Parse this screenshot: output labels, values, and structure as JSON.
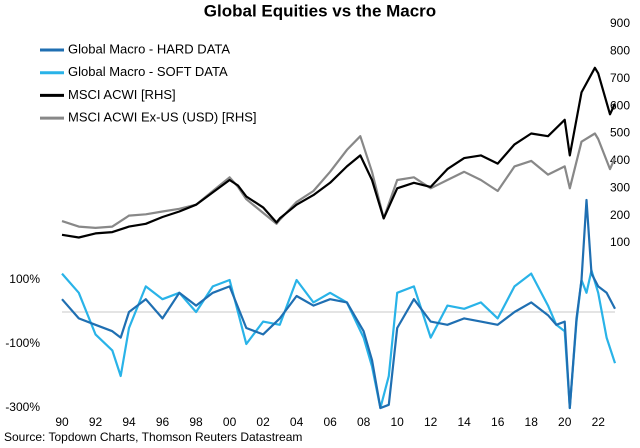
{
  "chart_data": [
    {
      "type": "line",
      "title": "Global Equities vs the Macro",
      "axis_side": "left",
      "x": [
        1990,
        1991,
        1992,
        1993,
        1993.5,
        1994,
        1995,
        1996,
        1997,
        1998,
        1999,
        2000,
        2001,
        2002,
        2003,
        2004,
        2005,
        2006,
        2007,
        2008,
        2008.5,
        2009,
        2009.5,
        2010,
        2011,
        2012,
        2013,
        2014,
        2015,
        2016,
        2017,
        2018,
        2019,
        2019.5,
        2020,
        2020.3,
        2020.7,
        2021,
        2021.3,
        2021.6,
        2022,
        2022.5,
        2023
      ],
      "xlim": [
        1990,
        2023
      ],
      "xticks": [
        {
          "value": 1990,
          "label": "90"
        },
        {
          "value": 1992,
          "label": "92"
        },
        {
          "value": 1994,
          "label": "94"
        },
        {
          "value": 1996,
          "label": "96"
        },
        {
          "value": 1998,
          "label": "98"
        },
        {
          "value": 2000,
          "label": "00"
        },
        {
          "value": 2002,
          "label": "02"
        },
        {
          "value": 2004,
          "label": "04"
        },
        {
          "value": 2006,
          "label": "06"
        },
        {
          "value": 2008,
          "label": "08"
        },
        {
          "value": 2010,
          "label": "10"
        },
        {
          "value": 2012,
          "label": "12"
        },
        {
          "value": 2014,
          "label": "14"
        },
        {
          "value": 2016,
          "label": "16"
        },
        {
          "value": 2018,
          "label": "18"
        },
        {
          "value": 2020,
          "label": "20"
        },
        {
          "value": 2022,
          "label": "22"
        }
      ],
      "ylim": [
        -300,
        100
      ],
      "yticks": [
        {
          "value": 100,
          "label": "100%"
        },
        {
          "value": -100,
          "label": "-100%"
        },
        {
          "value": -300,
          "label": "-300%"
        }
      ],
      "series": [
        {
          "name": "Global Macro - HARD DATA",
          "color": "#1f6fb2",
          "values": [
            40,
            -20,
            -40,
            -60,
            -80,
            0,
            40,
            -20,
            60,
            20,
            60,
            80,
            -50,
            -70,
            -20,
            50,
            20,
            40,
            30,
            -60,
            -150,
            -300,
            -290,
            -50,
            40,
            -30,
            -40,
            -20,
            -30,
            -40,
            0,
            30,
            -10,
            -40,
            -30,
            -300,
            -20,
            100,
            350,
            120,
            80,
            60,
            10
          ]
        },
        {
          "name": "Global Macro - SOFT DATA",
          "color": "#29b3e8",
          "values": [
            120,
            60,
            -70,
            -120,
            -200,
            -50,
            80,
            40,
            60,
            0,
            80,
            100,
            -100,
            -30,
            -40,
            100,
            30,
            60,
            30,
            -80,
            -170,
            -300,
            -200,
            60,
            80,
            -80,
            20,
            10,
            30,
            -20,
            80,
            120,
            20,
            -40,
            -60,
            -300,
            -30,
            100,
            60,
            130,
            60,
            -80,
            -160
          ]
        }
      ]
    },
    {
      "type": "line",
      "axis_side": "right",
      "x": [
        1990,
        1991,
        1992,
        1993,
        1994,
        1995,
        1996,
        1997,
        1998,
        1999,
        2000,
        2000.5,
        2001,
        2002,
        2002.8,
        2003,
        2004,
        2005,
        2006,
        2007,
        2007.8,
        2008.5,
        2009.2,
        2010,
        2011,
        2012,
        2013,
        2014,
        2015,
        2016,
        2017,
        2018,
        2019,
        2020,
        2020.3,
        2021,
        2021.8,
        2022,
        2022.7,
        2023
      ],
      "xlim": [
        1990,
        2023
      ],
      "ylim": [
        100,
        900
      ],
      "yticks": [
        100,
        200,
        300,
        400,
        500,
        600,
        700,
        800,
        900
      ],
      "series": [
        {
          "name": "MSCI ACWI [RHS]",
          "color": "#000000",
          "values": [
            130,
            120,
            135,
            140,
            160,
            170,
            195,
            215,
            240,
            285,
            330,
            310,
            270,
            230,
            175,
            190,
            240,
            275,
            320,
            380,
            420,
            330,
            190,
            300,
            320,
            305,
            370,
            410,
            420,
            390,
            460,
            500,
            490,
            550,
            420,
            650,
            740,
            720,
            570,
            610
          ]
        },
        {
          "name": "MSCI ACWI Ex-US (USD) [RHS]",
          "color": "#888888",
          "values": [
            180,
            160,
            155,
            160,
            200,
            205,
            215,
            225,
            240,
            290,
            340,
            305,
            260,
            210,
            170,
            185,
            250,
            290,
            360,
            440,
            490,
            360,
            190,
            330,
            340,
            300,
            330,
            360,
            330,
            290,
            380,
            400,
            350,
            380,
            300,
            470,
            500,
            480,
            370,
            410
          ]
        }
      ]
    }
  ],
  "source": "Source: Topdown Charts, Thomson Reuters Datastream"
}
